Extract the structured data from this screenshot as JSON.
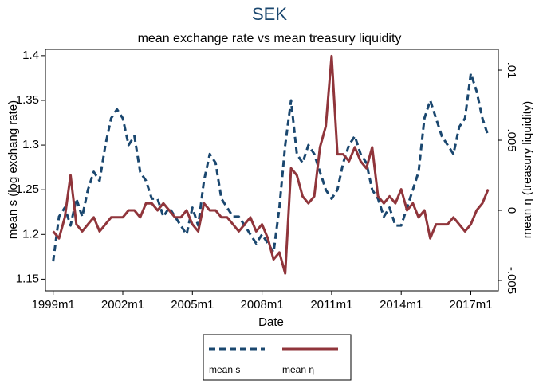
{
  "chart_data": {
    "type": "line",
    "title": "SEK",
    "subtitle": "mean exchange rate vs mean treasury liquidity",
    "x_label": "Date",
    "y_label": "mean s (log exchang rate)",
    "y2_label": "mean η  (treasury liquidity)",
    "x": [
      "1999m1",
      "1999m4",
      "1999m7",
      "1999m10",
      "2000m1",
      "2000m4",
      "2000m7",
      "2000m10",
      "2001m1",
      "2001m4",
      "2001m7",
      "2001m10",
      "2002m1",
      "2002m4",
      "2002m7",
      "2002m10",
      "2003m1",
      "2003m4",
      "2003m7",
      "2003m10",
      "2004m1",
      "2004m4",
      "2004m7",
      "2004m10",
      "2005m1",
      "2005m4",
      "2005m7",
      "2005m10",
      "2006m1",
      "2006m4",
      "2006m7",
      "2006m10",
      "2007m1",
      "2007m4",
      "2007m7",
      "2007m10",
      "2008m1",
      "2008m4",
      "2008m7",
      "2008m10",
      "2009m1",
      "2009m4",
      "2009m7",
      "2009m10",
      "2010m1",
      "2010m4",
      "2010m7",
      "2010m10",
      "2011m1",
      "2011m4",
      "2011m7",
      "2011m10",
      "2012m1",
      "2012m4",
      "2012m7",
      "2012m10",
      "2013m1",
      "2013m4",
      "2013m7",
      "2013m10",
      "2014m1",
      "2014m4",
      "2014m7",
      "2014m10",
      "2015m1",
      "2015m4",
      "2015m7",
      "2015m10",
      "2016m1",
      "2016m4",
      "2016m7",
      "2016m10",
      "2017m1",
      "2017m4",
      "2017m7",
      "2017m10"
    ],
    "xticks": [
      "1999m1",
      "2002m1",
      "2005m1",
      "2008m1",
      "2011m1",
      "2014m1",
      "2017m1"
    ],
    "ylim": [
      1.137,
      1.407
    ],
    "yticks": [
      1.15,
      1.2,
      1.25,
      1.3,
      1.35,
      1.4
    ],
    "y2lim": [
      -0.00574,
      0.01148
    ],
    "y2ticks": [
      {
        "value": -0.005,
        "label": "-.005"
      },
      0,
      {
        "value": 0.005,
        "label": ".005"
      },
      {
        "value": 0.01,
        "label": ".01"
      }
    ],
    "series": [
      {
        "name": "mean s",
        "color": "#1a476f",
        "dashed": true,
        "values": [
          1.17,
          1.22,
          1.23,
          1.21,
          1.24,
          1.22,
          1.25,
          1.27,
          1.26,
          1.3,
          1.33,
          1.34,
          1.33,
          1.3,
          1.31,
          1.27,
          1.26,
          1.24,
          1.24,
          1.22,
          1.23,
          1.22,
          1.21,
          1.2,
          1.23,
          1.21,
          1.26,
          1.29,
          1.28,
          1.24,
          1.23,
          1.22,
          1.22,
          1.21,
          1.2,
          1.19,
          1.2,
          1.19,
          1.18,
          1.23,
          1.3,
          1.35,
          1.29,
          1.28,
          1.3,
          1.29,
          1.27,
          1.25,
          1.24,
          1.25,
          1.28,
          1.3,
          1.31,
          1.29,
          1.28,
          1.25,
          1.24,
          1.22,
          1.23,
          1.21,
          1.21,
          1.23,
          1.25,
          1.27,
          1.33,
          1.35,
          1.33,
          1.31,
          1.3,
          1.29,
          1.32,
          1.33,
          1.38,
          1.36,
          1.33,
          1.31
        ]
      },
      {
        "name": "mean η",
        "color": "#90353b",
        "axis": "y2",
        "values": [
          -0.0015,
          -0.002,
          -0.0005,
          0.0025,
          -0.001,
          -0.0015,
          -0.001,
          -0.0005,
          -0.0015,
          -0.001,
          -0.0005,
          -0.0005,
          -0.0005,
          0,
          0,
          -0.0005,
          0.0005,
          0.0005,
          0,
          0.0005,
          0,
          -0.0005,
          -0.0005,
          0,
          -0.001,
          -0.0015,
          0.0005,
          0,
          0,
          -0.0005,
          -0.0005,
          -0.001,
          -0.0015,
          -0.001,
          -0.0005,
          -0.0015,
          -0.001,
          -0.002,
          -0.0035,
          -0.003,
          -0.0045,
          0.003,
          0.0025,
          0.001,
          0.0005,
          0.001,
          0.0045,
          0.006,
          0.011,
          0.004,
          0.004,
          0.0035,
          0.0045,
          0.0035,
          0.003,
          0.0045,
          0.001,
          0.0005,
          0.001,
          0.0005,
          0.0015,
          0,
          0.0005,
          -0.0005,
          0,
          -0.002,
          -0.001,
          -0.001,
          -0.001,
          -0.0005,
          -0.001,
          -0.0015,
          -0.001,
          0,
          0.0005,
          0.0015
        ]
      }
    ]
  }
}
